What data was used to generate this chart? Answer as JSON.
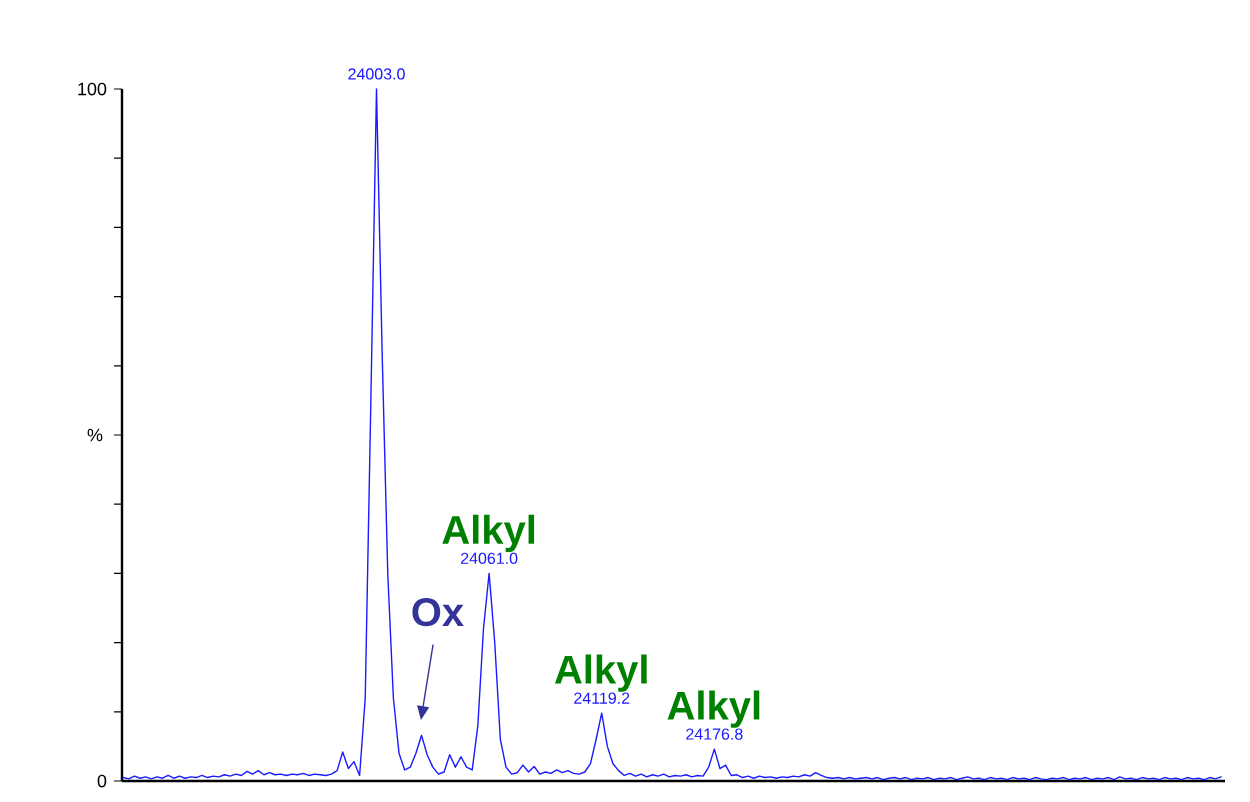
{
  "chart_data": {
    "type": "line",
    "ylabel": "%",
    "categories": [
      null,
      null,
      null,
      null,
      null,
      null,
      null,
      null,
      null,
      null,
      null,
      null,
      null,
      null,
      null,
      null,
      null,
      null,
      null,
      null,
      null,
      null,
      null,
      null,
      null,
      null,
      null,
      null,
      null,
      null,
      null,
      null,
      null,
      null,
      null,
      null,
      null,
      null,
      null,
      null,
      null,
      null,
      null,
      null,
      null,
      null,
      null,
      null,
      null,
      null,
      null,
      null,
      null,
      null,
      null,
      null,
      null,
      null,
      null,
      null,
      null,
      null,
      null,
      null,
      null,
      null,
      null,
      null,
      null,
      null,
      null,
      null,
      null,
      null,
      null,
      null,
      null,
      null,
      null,
      null,
      null,
      null,
      null,
      null,
      null,
      null,
      null,
      null,
      null,
      null,
      null,
      null,
      null,
      null,
      null,
      null,
      null,
      null,
      null,
      null,
      null,
      null,
      null,
      null,
      null,
      null,
      null,
      null,
      null,
      null,
      null,
      null,
      null,
      null,
      null,
      null,
      null,
      null,
      null,
      null,
      null,
      null,
      null,
      null,
      null,
      null,
      null,
      null,
      null,
      null,
      null,
      null,
      null,
      null,
      null,
      null,
      null,
      null,
      null,
      null,
      null,
      null,
      null,
      null,
      null,
      null,
      null,
      null,
      null,
      null,
      null,
      null,
      null,
      null,
      null,
      null,
      null,
      null,
      null,
      null,
      null,
      null,
      null,
      null,
      null,
      null,
      null,
      null,
      null,
      null,
      null,
      null,
      null,
      null,
      null,
      null,
      null,
      null,
      null,
      null,
      null,
      null,
      null,
      null,
      null,
      null,
      null,
      null,
      null,
      null,
      null,
      null,
      null,
      null,
      null,
      null
    ],
    "series": [
      {
        "color": "#1a1aff",
        "values": [
          0.5,
          0.3,
          0.7,
          0.4,
          0.6,
          0.3,
          0.6,
          0.4,
          0.8,
          0.4,
          0.7,
          0.4,
          0.6,
          0.5,
          0.8,
          0.5,
          0.7,
          0.6,
          0.9,
          0.7,
          1.0,
          0.8,
          1.4,
          1.0,
          1.5,
          0.9,
          1.2,
          0.9,
          1.0,
          0.8,
          1.0,
          0.9,
          1.1,
          0.8,
          1.0,
          0.9,
          0.8,
          1.0,
          1.5,
          4.2,
          1.8,
          2.8,
          0.8,
          12,
          55,
          100,
          62,
          30,
          12,
          4,
          1.6,
          2.0,
          4.0,
          6.6,
          3.8,
          2,
          1.0,
          1.3,
          3.8,
          2,
          3.5,
          2.0,
          1.6,
          8,
          22,
          30,
          20,
          6,
          2,
          1.0,
          1.2,
          2.3,
          1.3,
          2.1,
          1.0,
          1.3,
          1.1,
          1.6,
          1.2,
          1.5,
          1.1,
          1.0,
          1.3,
          2.5,
          6,
          9.8,
          5,
          2.5,
          1.5,
          0.8,
          1.1,
          0.7,
          1.0,
          0.6,
          0.9,
          0.7,
          1.0,
          0.6,
          0.8,
          0.7,
          0.9,
          0.6,
          0.8,
          0.7,
          2.0,
          4.6,
          1.8,
          2.3,
          0.8,
          0.9,
          0.5,
          0.7,
          0.4,
          0.7,
          0.5,
          0.6,
          0.4,
          0.6,
          0.5,
          0.7,
          0.6,
          0.9,
          0.7,
          1.2,
          0.8,
          0.5,
          0.4,
          0.5,
          0.3,
          0.5,
          0.3,
          0.4,
          0.5,
          0.3,
          0.5,
          0.2,
          0.4,
          0.5,
          0.3,
          0.5,
          0.2,
          0.4,
          0.3,
          0.5,
          0.2,
          0.4,
          0.3,
          0.5,
          0.2,
          0.4,
          0.6,
          0.3,
          0.4,
          0.2,
          0.5,
          0.3,
          0.4,
          0.2,
          0.5,
          0.3,
          0.4,
          0.2,
          0.5,
          0.3,
          0.2,
          0.4,
          0.3,
          0.5,
          0.2,
          0.4,
          0.3,
          0.5,
          0.2,
          0.4,
          0.3,
          0.5,
          0.2,
          0.6,
          0.3,
          0.4,
          0.2,
          0.5,
          0.3,
          0.4,
          0.2,
          0.5,
          0.3,
          0.4,
          0.2,
          0.5,
          0.3,
          0.4,
          0.2,
          0.5,
          0.3,
          0.6
        ]
      }
    ],
    "ylim": [
      0,
      100
    ],
    "yticks": [
      0,
      {
        "value": 10,
        "label": null
      },
      {
        "value": 20,
        "label": null
      },
      {
        "value": 30,
        "label": null
      },
      {
        "value": 40,
        "label": null
      },
      {
        "value": 50,
        "label": null
      },
      {
        "value": 60,
        "label": null
      },
      {
        "value": 70,
        "label": null
      },
      {
        "value": 80,
        "label": null
      },
      {
        "value": 90,
        "label": null
      },
      100
    ],
    "tick_labels": "y",
    "marker": "none",
    "line_style": "solid",
    "annotations": [
      {
        "text": "24003.0",
        "y": 100
      },
      {
        "text": "24061.0",
        "y": 30
      },
      {
        "text": "24119.2",
        "y": 9.8
      },
      {
        "text": "24176.8",
        "y": 4.6
      },
      {
        "text": "Alkyl",
        "y": 30
      },
      {
        "text": "Alkyl",
        "y": 9.8
      },
      {
        "text": "Alkyl",
        "y": 4.6
      },
      "Ox"
    ]
  }
}
